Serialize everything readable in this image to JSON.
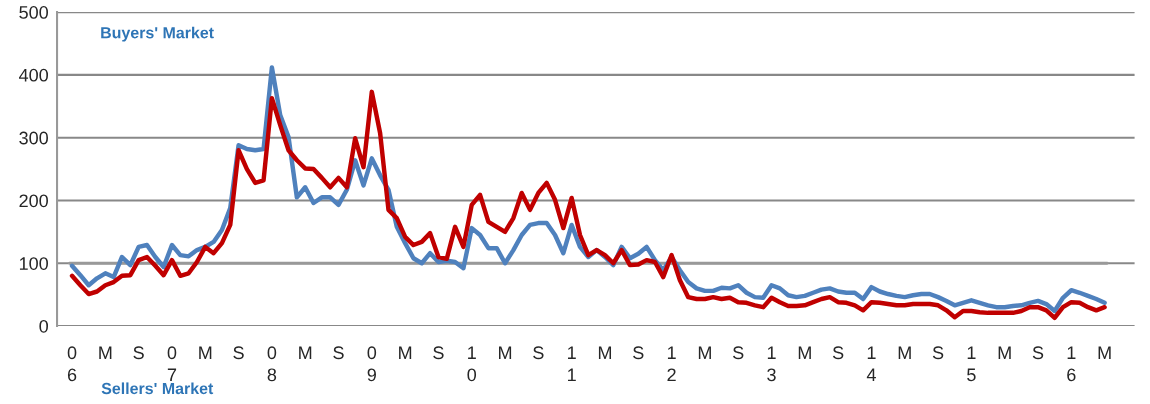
{
  "chart_data": {
    "type": "line",
    "categories": [
      "0\n6",
      null,
      null,
      null,
      "M",
      null,
      null,
      null,
      "S",
      null,
      null,
      null,
      "0\n7",
      null,
      null,
      null,
      "M",
      null,
      null,
      null,
      "S",
      null,
      null,
      null,
      "0\n8",
      null,
      null,
      null,
      "M",
      null,
      null,
      null,
      "S",
      null,
      null,
      null,
      "0\n9",
      null,
      null,
      null,
      "M",
      null,
      null,
      null,
      "S",
      null,
      null,
      null,
      "1\n0",
      null,
      null,
      null,
      "M",
      null,
      null,
      null,
      "S",
      null,
      null,
      null,
      "1\n1",
      null,
      null,
      null,
      "M",
      null,
      null,
      null,
      "S",
      null,
      null,
      null,
      "1\n2",
      null,
      null,
      null,
      "M",
      null,
      null,
      null,
      "S",
      null,
      null,
      null,
      "1\n3",
      null,
      null,
      null,
      "M",
      null,
      null,
      null,
      "S",
      null,
      null,
      null,
      "1\n4",
      null,
      null,
      null,
      "M",
      null,
      null,
      null,
      "S",
      null,
      null,
      null,
      "1\n5",
      null,
      null,
      null,
      "M",
      null,
      null,
      null,
      "S",
      null,
      null,
      null,
      "1\n6",
      null,
      null,
      null,
      "M"
    ],
    "series": [
      {
        "color": "#4f81bd",
        "values": [
          96,
          81,
          65,
          76,
          84,
          78,
          110,
          97,
          126,
          129,
          110,
          94,
          129,
          113,
          111,
          121,
          126,
          134,
          153,
          188,
          288,
          282,
          280,
          282,
          412,
          336,
          301,
          205,
          221,
          196,
          205,
          205,
          193,
          217,
          264,
          224,
          267,
          240,
          217,
          158,
          132,
          108,
          100,
          116,
          102,
          104,
          102,
          92,
          156,
          145,
          124,
          124,
          100,
          121,
          145,
          161,
          164,
          164,
          145,
          116,
          161,
          126,
          110,
          121,
          110,
          97,
          126,
          108,
          115,
          126,
          105,
          89,
          110,
          89,
          70,
          60,
          56,
          56,
          61,
          60,
          65,
          53,
          46,
          45,
          65,
          60,
          49,
          46,
          48,
          53,
          58,
          60,
          55,
          53,
          53,
          43,
          62,
          55,
          51,
          48,
          46,
          49,
          51,
          51,
          46,
          40,
          33,
          37,
          41,
          37,
          33,
          30,
          30,
          32,
          33,
          37,
          40,
          35,
          24,
          45,
          57,
          53,
          48,
          43,
          37
        ]
      },
      {
        "color": "#c00000",
        "values": [
          80,
          65,
          51,
          55,
          65,
          70,
          80,
          81,
          105,
          110,
          96,
          81,
          105,
          80,
          84,
          102,
          126,
          116,
          132,
          161,
          280,
          250,
          228,
          232,
          363,
          320,
          280,
          264,
          251,
          250,
          236,
          221,
          236,
          221,
          299,
          253,
          373,
          307,
          185,
          172,
          142,
          129,
          134,
          148,
          110,
          107,
          158,
          126,
          193,
          209,
          166,
          158,
          150,
          172,
          212,
          185,
          212,
          228,
          201,
          156,
          204,
          145,
          113,
          121,
          113,
          100,
          121,
          97,
          98,
          105,
          102,
          78,
          113,
          73,
          46,
          43,
          43,
          46,
          43,
          45,
          38,
          37,
          33,
          30,
          45,
          38,
          32,
          32,
          33,
          38,
          43,
          46,
          38,
          37,
          33,
          25,
          38,
          37,
          35,
          33,
          33,
          35,
          35,
          35,
          33,
          25,
          14,
          24,
          24,
          22,
          21,
          21,
          21,
          21,
          24,
          30,
          30,
          25,
          13,
          30,
          38,
          37,
          30,
          25,
          30
        ]
      }
    ],
    "ref_lines": [
      {
        "axis": "y",
        "value": 100,
        "color": "#999999"
      }
    ],
    "ylim": [
      0,
      500
    ],
    "yticks": [
      0,
      100,
      200,
      300,
      400,
      500
    ],
    "grid": "y",
    "annotations": [
      "Buyers' Market",
      "Sellers' Market"
    ]
  }
}
